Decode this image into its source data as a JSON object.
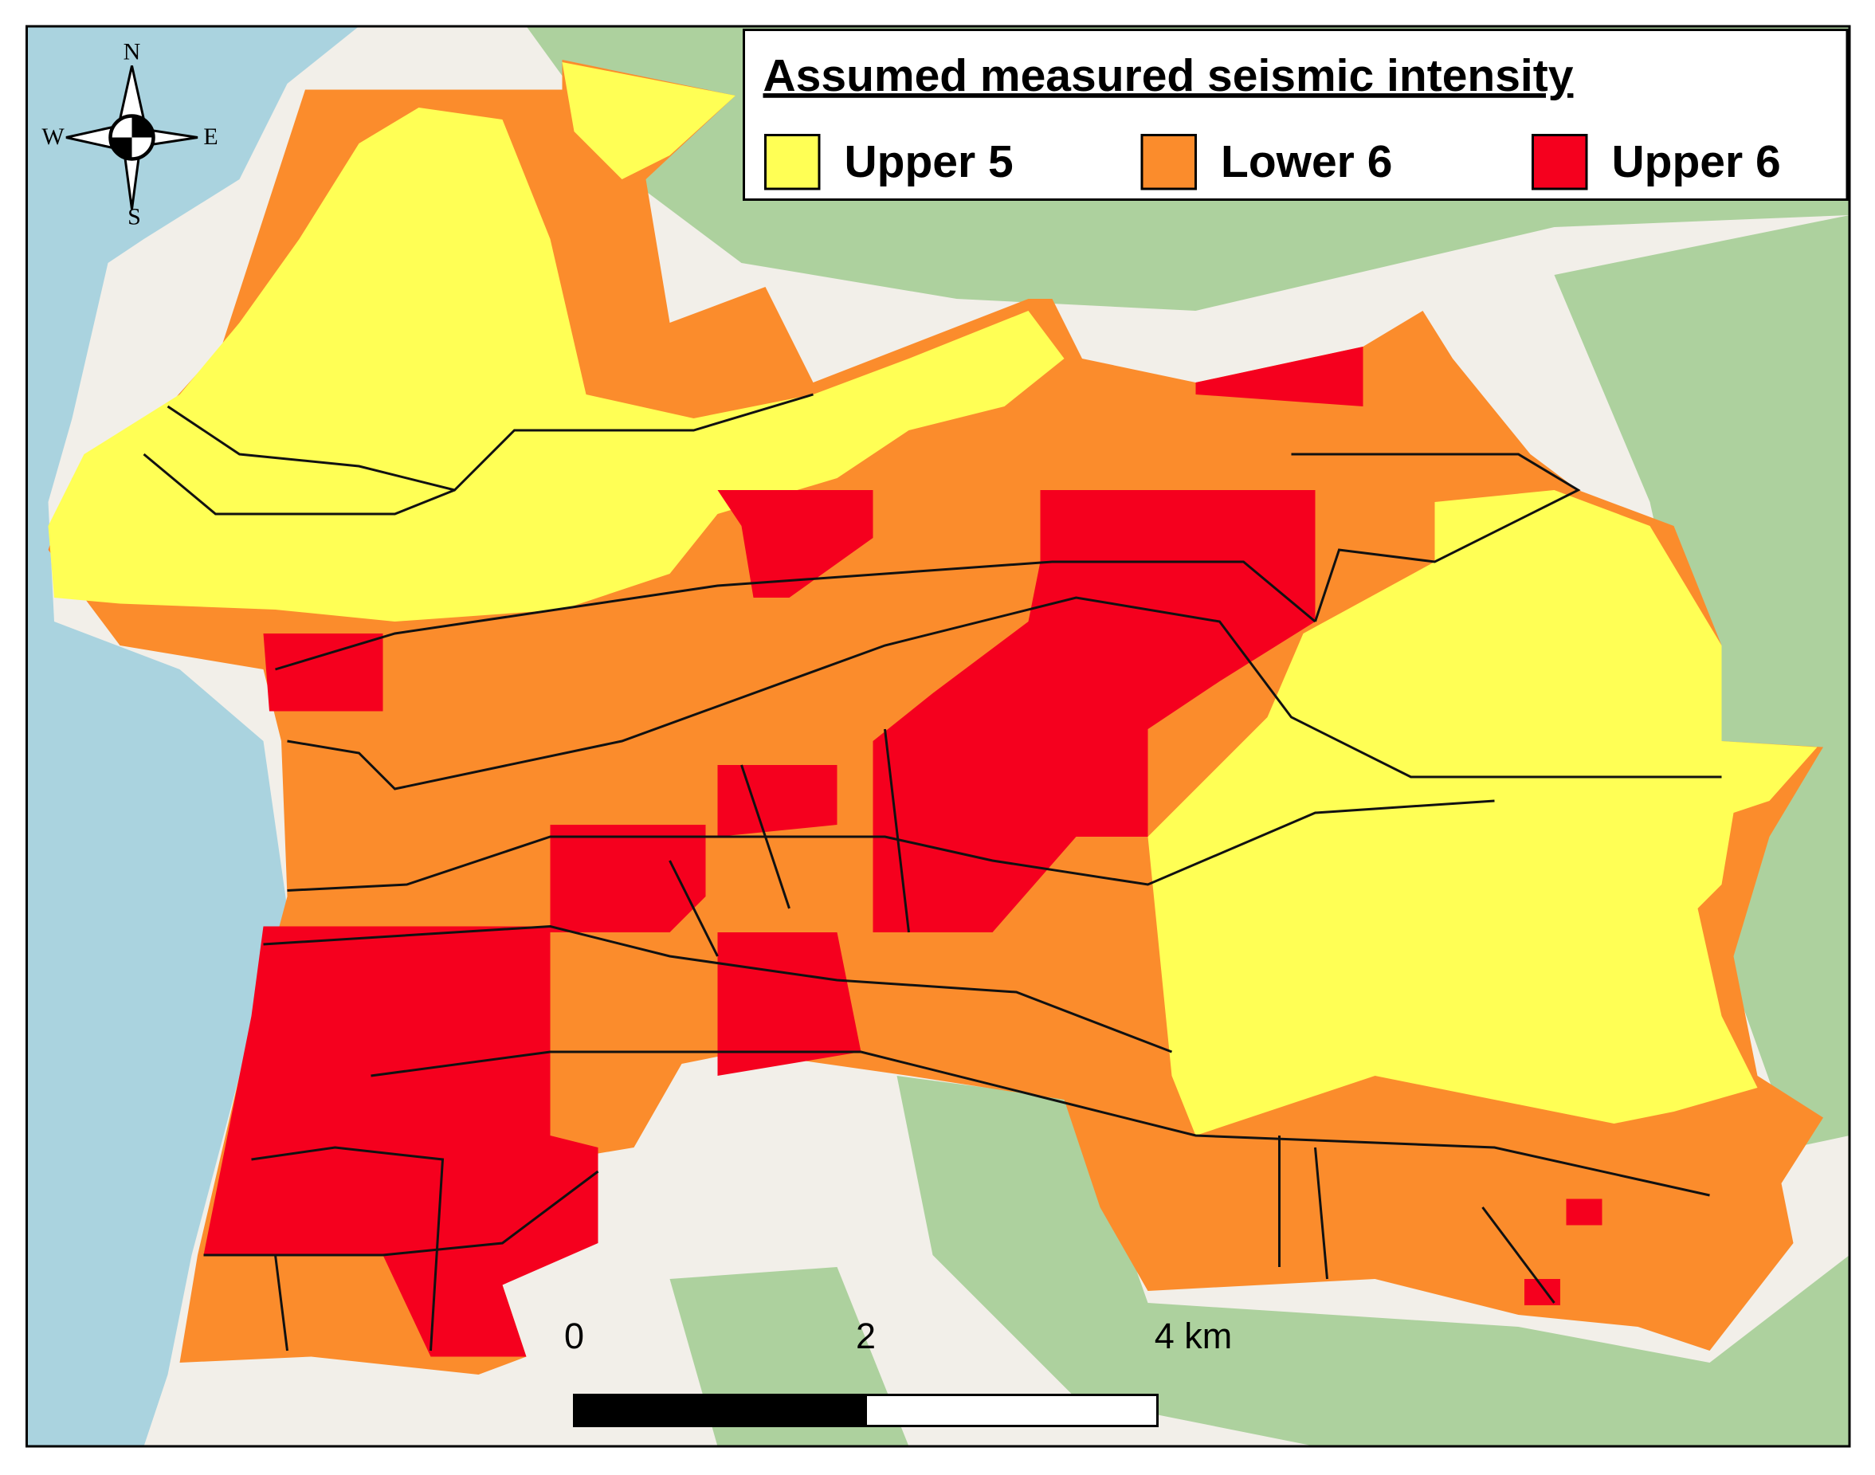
{
  "legend": {
    "title": "Assumed measured seismic intensity",
    "items": [
      {
        "label": "Upper 5",
        "color": "#ffff55"
      },
      {
        "label": "Lower 6",
        "color": "#fb8c2c"
      },
      {
        "label": "Upper 6",
        "color": "#f5001e"
      }
    ]
  },
  "compass": {
    "north": "N",
    "south": "S",
    "east": "E",
    "west": "W"
  },
  "scale_bar": {
    "labels": [
      "0",
      "2",
      "4 km"
    ]
  }
}
